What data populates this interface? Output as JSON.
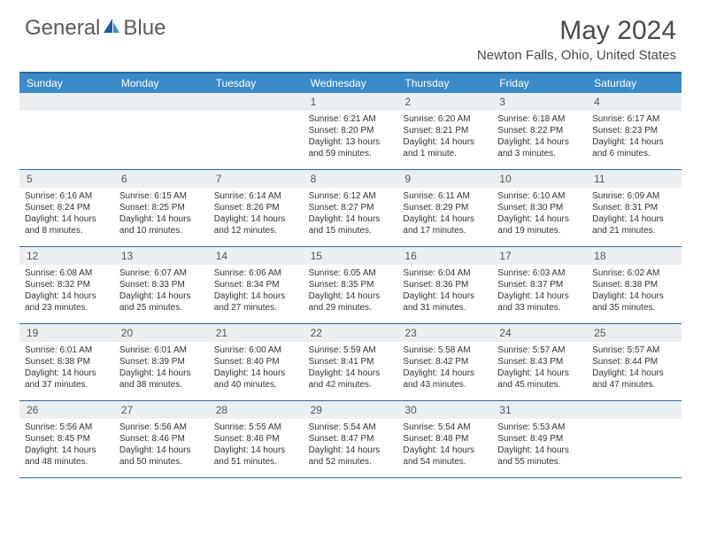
{
  "brand": {
    "part1": "General",
    "part2": "Blue"
  },
  "title": "May 2024",
  "location": "Newton Falls, Ohio, United States",
  "colors": {
    "header_bg": "#3b8bc8",
    "border": "#2c6aa0",
    "daynum_bg": "#eceff1",
    "text": "#333333"
  },
  "weekdays": [
    "Sunday",
    "Monday",
    "Tuesday",
    "Wednesday",
    "Thursday",
    "Friday",
    "Saturday"
  ],
  "weeks": [
    [
      null,
      null,
      null,
      {
        "n": "1",
        "sr": "6:21 AM",
        "ss": "8:20 PM",
        "dl": "13 hours and 59 minutes."
      },
      {
        "n": "2",
        "sr": "6:20 AM",
        "ss": "8:21 PM",
        "dl": "14 hours and 1 minute."
      },
      {
        "n": "3",
        "sr": "6:18 AM",
        "ss": "8:22 PM",
        "dl": "14 hours and 3 minutes."
      },
      {
        "n": "4",
        "sr": "6:17 AM",
        "ss": "8:23 PM",
        "dl": "14 hours and 6 minutes."
      }
    ],
    [
      {
        "n": "5",
        "sr": "6:16 AM",
        "ss": "8:24 PM",
        "dl": "14 hours and 8 minutes."
      },
      {
        "n": "6",
        "sr": "6:15 AM",
        "ss": "8:25 PM",
        "dl": "14 hours and 10 minutes."
      },
      {
        "n": "7",
        "sr": "6:14 AM",
        "ss": "8:26 PM",
        "dl": "14 hours and 12 minutes."
      },
      {
        "n": "8",
        "sr": "6:12 AM",
        "ss": "8:27 PM",
        "dl": "14 hours and 15 minutes."
      },
      {
        "n": "9",
        "sr": "6:11 AM",
        "ss": "8:29 PM",
        "dl": "14 hours and 17 minutes."
      },
      {
        "n": "10",
        "sr": "6:10 AM",
        "ss": "8:30 PM",
        "dl": "14 hours and 19 minutes."
      },
      {
        "n": "11",
        "sr": "6:09 AM",
        "ss": "8:31 PM",
        "dl": "14 hours and 21 minutes."
      }
    ],
    [
      {
        "n": "12",
        "sr": "6:08 AM",
        "ss": "8:32 PM",
        "dl": "14 hours and 23 minutes."
      },
      {
        "n": "13",
        "sr": "6:07 AM",
        "ss": "8:33 PM",
        "dl": "14 hours and 25 minutes."
      },
      {
        "n": "14",
        "sr": "6:06 AM",
        "ss": "8:34 PM",
        "dl": "14 hours and 27 minutes."
      },
      {
        "n": "15",
        "sr": "6:05 AM",
        "ss": "8:35 PM",
        "dl": "14 hours and 29 minutes."
      },
      {
        "n": "16",
        "sr": "6:04 AM",
        "ss": "8:36 PM",
        "dl": "14 hours and 31 minutes."
      },
      {
        "n": "17",
        "sr": "6:03 AM",
        "ss": "8:37 PM",
        "dl": "14 hours and 33 minutes."
      },
      {
        "n": "18",
        "sr": "6:02 AM",
        "ss": "8:38 PM",
        "dl": "14 hours and 35 minutes."
      }
    ],
    [
      {
        "n": "19",
        "sr": "6:01 AM",
        "ss": "8:38 PM",
        "dl": "14 hours and 37 minutes."
      },
      {
        "n": "20",
        "sr": "6:01 AM",
        "ss": "8:39 PM",
        "dl": "14 hours and 38 minutes."
      },
      {
        "n": "21",
        "sr": "6:00 AM",
        "ss": "8:40 PM",
        "dl": "14 hours and 40 minutes."
      },
      {
        "n": "22",
        "sr": "5:59 AM",
        "ss": "8:41 PM",
        "dl": "14 hours and 42 minutes."
      },
      {
        "n": "23",
        "sr": "5:58 AM",
        "ss": "8:42 PM",
        "dl": "14 hours and 43 minutes."
      },
      {
        "n": "24",
        "sr": "5:57 AM",
        "ss": "8:43 PM",
        "dl": "14 hours and 45 minutes."
      },
      {
        "n": "25",
        "sr": "5:57 AM",
        "ss": "8:44 PM",
        "dl": "14 hours and 47 minutes."
      }
    ],
    [
      {
        "n": "26",
        "sr": "5:56 AM",
        "ss": "8:45 PM",
        "dl": "14 hours and 48 minutes."
      },
      {
        "n": "27",
        "sr": "5:56 AM",
        "ss": "8:46 PM",
        "dl": "14 hours and 50 minutes."
      },
      {
        "n": "28",
        "sr": "5:55 AM",
        "ss": "8:46 PM",
        "dl": "14 hours and 51 minutes."
      },
      {
        "n": "29",
        "sr": "5:54 AM",
        "ss": "8:47 PM",
        "dl": "14 hours and 52 minutes."
      },
      {
        "n": "30",
        "sr": "5:54 AM",
        "ss": "8:48 PM",
        "dl": "14 hours and 54 minutes."
      },
      {
        "n": "31",
        "sr": "5:53 AM",
        "ss": "8:49 PM",
        "dl": "14 hours and 55 minutes."
      },
      null
    ]
  ],
  "labels": {
    "sunrise": "Sunrise:",
    "sunset": "Sunset:",
    "daylight": "Daylight:"
  }
}
